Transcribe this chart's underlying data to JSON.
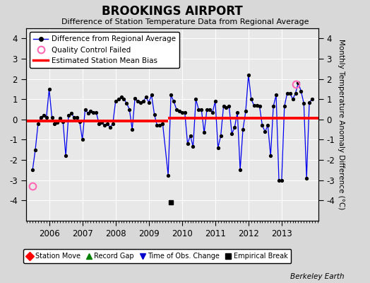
{
  "title": "BROOKINGS AIRPORT",
  "subtitle": "Difference of Station Temperature Data from Regional Average",
  "ylabel": "Monthly Temperature Anomaly Difference (°C)",
  "credit": "Berkeley Earth",
  "bias1_value": -0.08,
  "bias1_start": 2005.3,
  "bias1_end": 2009.58,
  "bias2_value": 0.05,
  "bias2_start": 2009.58,
  "bias2_end": 2014.1,
  "xlim": [
    2005.3,
    2014.1
  ],
  "ylim": [
    -5,
    4.5
  ],
  "yticks": [
    -4,
    -3,
    -2,
    -1,
    0,
    1,
    2,
    3,
    4
  ],
  "xticks": [
    2006,
    2007,
    2008,
    2009,
    2010,
    2011,
    2012,
    2013
  ],
  "background_color": "#e8e8e8",
  "fig_background": "#d8d8d8",
  "line_color": "#0000ee",
  "bias_color": "#ff0000",
  "marker_color": "#000000",
  "empirical_break_x": 2009.67,
  "empirical_break_y": -4.1,
  "qc_fail_x": 2005.5,
  "qc_fail_y": -3.3,
  "qc_fail2_x": 2013.42,
  "qc_fail2_y": 1.75,
  "data_x": [
    2005.5,
    2005.583,
    2005.667,
    2005.75,
    2005.833,
    2005.917,
    2006.0,
    2006.083,
    2006.167,
    2006.25,
    2006.333,
    2006.417,
    2006.5,
    2006.583,
    2006.667,
    2006.75,
    2006.833,
    2006.917,
    2007.0,
    2007.083,
    2007.167,
    2007.25,
    2007.333,
    2007.417,
    2007.5,
    2007.583,
    2007.667,
    2007.75,
    2007.833,
    2007.917,
    2008.0,
    2008.083,
    2008.167,
    2008.25,
    2008.333,
    2008.417,
    2008.5,
    2008.583,
    2008.667,
    2008.75,
    2008.833,
    2008.917,
    2009.0,
    2009.083,
    2009.167,
    2009.25,
    2009.333,
    2009.417,
    2009.583,
    2009.667,
    2009.75,
    2009.833,
    2009.917,
    2010.0,
    2010.083,
    2010.167,
    2010.25,
    2010.333,
    2010.417,
    2010.5,
    2010.583,
    2010.667,
    2010.75,
    2010.833,
    2010.917,
    2011.0,
    2011.083,
    2011.167,
    2011.25,
    2011.333,
    2011.417,
    2011.5,
    2011.583,
    2011.667,
    2011.75,
    2011.833,
    2011.917,
    2012.0,
    2012.083,
    2012.167,
    2012.25,
    2012.333,
    2012.417,
    2012.5,
    2012.583,
    2012.667,
    2012.75,
    2012.833,
    2012.917,
    2013.0,
    2013.083,
    2013.167,
    2013.25,
    2013.333,
    2013.417,
    2013.5,
    2013.583,
    2013.667,
    2013.75,
    2013.833,
    2013.917
  ],
  "data_y": [
    -2.5,
    -1.5,
    -0.2,
    0.1,
    0.2,
    0.1,
    1.5,
    0.1,
    -0.2,
    -0.15,
    0.05,
    -0.1,
    -1.8,
    0.2,
    0.3,
    0.1,
    0.1,
    -0.1,
    -1.0,
    0.5,
    0.3,
    0.4,
    0.35,
    0.35,
    -0.2,
    -0.15,
    -0.3,
    -0.2,
    -0.4,
    -0.2,
    0.9,
    1.0,
    1.1,
    1.0,
    0.8,
    0.5,
    -0.5,
    1.05,
    0.9,
    0.85,
    0.9,
    1.1,
    0.85,
    1.2,
    0.25,
    -0.3,
    -0.3,
    -0.2,
    -2.75,
    1.2,
    0.9,
    0.5,
    0.4,
    0.35,
    0.35,
    -1.2,
    -0.8,
    -1.35,
    1.0,
    0.5,
    0.5,
    -0.65,
    0.5,
    0.5,
    0.35,
    0.9,
    -1.4,
    -0.8,
    0.65,
    0.6,
    0.65,
    -0.7,
    -0.4,
    0.35,
    -2.5,
    -0.5,
    0.4,
    2.2,
    1.0,
    0.7,
    0.7,
    0.65,
    -0.3,
    -0.6,
    -0.3,
    -1.8,
    0.65,
    1.2,
    -3.0,
    -3.0,
    0.65,
    1.3,
    1.3,
    1.0,
    1.3,
    1.8,
    1.4,
    0.8,
    -2.9,
    0.85,
    1.0
  ]
}
